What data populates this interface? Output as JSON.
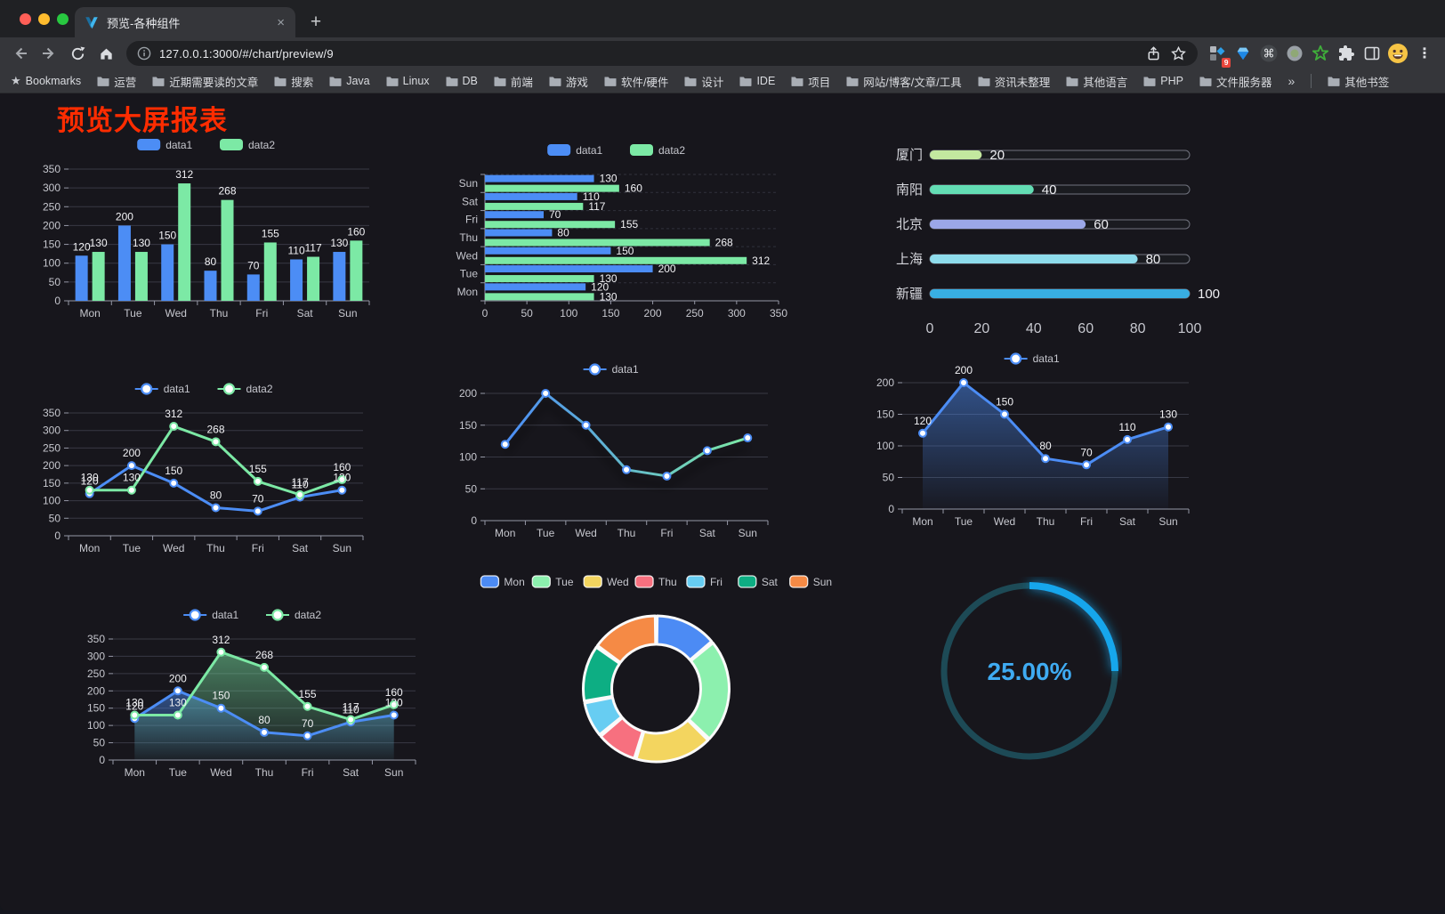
{
  "browser": {
    "tab": {
      "title": "预览-各种组件",
      "close_icon": "×"
    },
    "new_tab_icon": "+",
    "url": "127.0.0.1:3000/#/chart/preview/9",
    "extension_badge": "9",
    "menu_icon": "⋮",
    "bookmarks_bar": {
      "label": "Bookmarks",
      "folders": [
        "运营",
        "近期需要读的文章",
        "搜索",
        "Java",
        "Linux",
        "DB",
        "前端",
        "游戏",
        "软件/硬件",
        "设计",
        "IDE",
        "项目",
        "网站/博客/文章/工具",
        "资讯未整理",
        "其他语言",
        "PHP",
        "文件服务器"
      ],
      "overflow_icon": "»",
      "other_bookmarks": "其他书签"
    }
  },
  "page": {
    "title": "预览大屏报表",
    "title_color": "#FE2C00"
  },
  "chart_data": [
    {
      "id": "bar-vertical",
      "type": "bar",
      "categories": [
        "Mon",
        "Tue",
        "Wed",
        "Thu",
        "Fri",
        "Sat",
        "Sun"
      ],
      "series": [
        {
          "name": "data1",
          "color": "#4C8DF5",
          "values": [
            120,
            200,
            150,
            80,
            70,
            110,
            130
          ]
        },
        {
          "name": "data2",
          "color": "#7CE9A5",
          "values": [
            130,
            130,
            312,
            268,
            155,
            117,
            160
          ]
        }
      ],
      "ylim": [
        0,
        350
      ],
      "ystep": 50,
      "labels": true,
      "legend_position": "top"
    },
    {
      "id": "bar-horizontal",
      "type": "bar",
      "orientation": "horizontal",
      "categories": [
        "Mon",
        "Tue",
        "Wed",
        "Thu",
        "Fri",
        "Sat",
        "Sun"
      ],
      "series": [
        {
          "name": "data1",
          "color": "#4C8DF5",
          "values": [
            120,
            200,
            150,
            80,
            70,
            110,
            130
          ]
        },
        {
          "name": "data2",
          "color": "#7CE9A5",
          "values": [
            130,
            130,
            312,
            268,
            155,
            117,
            160
          ]
        }
      ],
      "xlim": [
        0,
        350
      ],
      "xstep": 50,
      "labels": true,
      "legend_position": "top"
    },
    {
      "id": "progress-list",
      "type": "bar",
      "subtype": "progress-bars",
      "rows": [
        {
          "label": "厦门",
          "value": 20,
          "color": "#C3E89F"
        },
        {
          "label": "南阳",
          "value": 40,
          "color": "#63DDB4"
        },
        {
          "label": "北京",
          "value": 60,
          "color": "#9BA7E8"
        },
        {
          "label": "上海",
          "value": 80,
          "color": "#8EDCEC"
        },
        {
          "label": "新疆",
          "value": 100,
          "color": "#38AEE3"
        }
      ],
      "max": 100,
      "axis": [
        0,
        20,
        40,
        60,
        80,
        100
      ]
    },
    {
      "id": "line-double",
      "type": "line",
      "categories": [
        "Mon",
        "Tue",
        "Wed",
        "Thu",
        "Fri",
        "Sat",
        "Sun"
      ],
      "series": [
        {
          "name": "data1",
          "color": "#4C8DF5",
          "values": [
            120,
            200,
            150,
            80,
            70,
            110,
            130
          ]
        },
        {
          "name": "data2",
          "color": "#7CE9A5",
          "values": [
            130,
            130,
            312,
            268,
            155,
            117,
            160
          ]
        }
      ],
      "ylim": [
        0,
        350
      ],
      "ystep": 50,
      "labels": true,
      "legend_position": "top"
    },
    {
      "id": "line-gradient",
      "type": "line",
      "categories": [
        "Mon",
        "Tue",
        "Wed",
        "Thu",
        "Fri",
        "Sat",
        "Sun"
      ],
      "series": [
        {
          "name": "data1",
          "gradient": [
            "#4C8DF5",
            "#7CE9A5"
          ],
          "values": [
            120,
            200,
            150,
            80,
            70,
            110,
            130
          ]
        }
      ],
      "ylim": [
        0,
        200
      ],
      "ystep": 50,
      "labels": false,
      "shadow": true,
      "legend_position": "top"
    },
    {
      "id": "area-single",
      "type": "area",
      "categories": [
        "Mon",
        "Tue",
        "Wed",
        "Thu",
        "Fri",
        "Sat",
        "Sun"
      ],
      "series": [
        {
          "name": "data1",
          "color": "#4C8DF5",
          "values": [
            120,
            200,
            150,
            80,
            70,
            110,
            130
          ]
        }
      ],
      "ylim": [
        0,
        200
      ],
      "ystep": 50,
      "labels": true,
      "area": true,
      "legend_position": "top"
    },
    {
      "id": "area-double",
      "type": "area",
      "categories": [
        "Mon",
        "Tue",
        "Wed",
        "Thu",
        "Fri",
        "Sat",
        "Sun"
      ],
      "series": [
        {
          "name": "data1",
          "color": "#4C8DF5",
          "values": [
            120,
            200,
            150,
            80,
            70,
            110,
            130
          ]
        },
        {
          "name": "data2",
          "color": "#7CE9A5",
          "values": [
            130,
            130,
            312,
            268,
            155,
            117,
            160
          ]
        }
      ],
      "ylim": [
        0,
        350
      ],
      "ystep": 50,
      "labels": true,
      "area": true,
      "legend_position": "top"
    },
    {
      "id": "donut",
      "type": "pie",
      "slices": [
        {
          "name": "Mon",
          "value": 120,
          "color": "#4C8BF4"
        },
        {
          "name": "Tue",
          "value": 200,
          "color": "#8CF0AE"
        },
        {
          "name": "Wed",
          "value": 150,
          "color": "#F3D55F"
        },
        {
          "name": "Thu",
          "value": 80,
          "color": "#F7707F"
        },
        {
          "name": "Fri",
          "value": 70,
          "color": "#67CDF2"
        },
        {
          "name": "Sat",
          "value": 110,
          "color": "#0DAE83"
        },
        {
          "name": "Sun",
          "value": 130,
          "color": "#F58A45"
        }
      ],
      "legend_position": "top"
    },
    {
      "id": "gauge",
      "type": "gauge",
      "value_percent": 25,
      "label": "25.00%",
      "arc_color": "#18A6EC",
      "track_color": "#1D4A56",
      "text_color": "#3FABF2"
    }
  ]
}
